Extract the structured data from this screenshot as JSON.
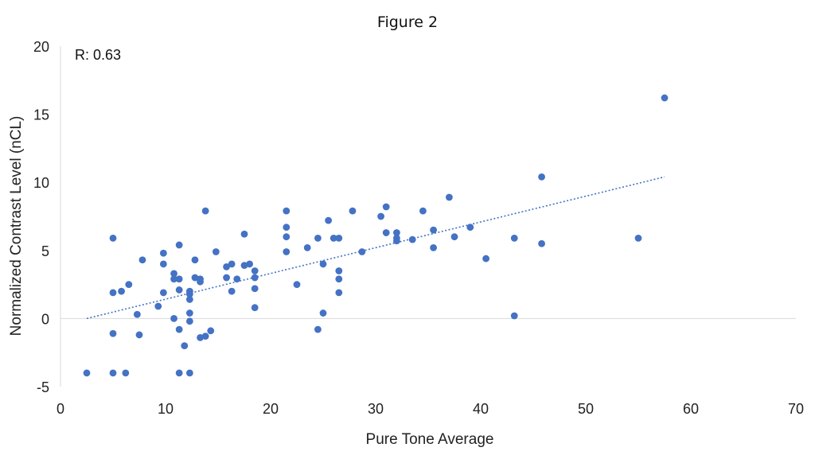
{
  "chart_data": {
    "type": "scatter",
    "title": "Figure 2",
    "xlabel": "Pure Tone Average",
    "ylabel": "Normalized Contrast Level (nCL)",
    "annotation": "R: 0.63",
    "xlim": [
      0,
      70
    ],
    "ylim": [
      -5,
      20
    ],
    "xticks": [
      0,
      10,
      20,
      30,
      40,
      50,
      60,
      70
    ],
    "yticks": [
      -5,
      0,
      5,
      10,
      15,
      20
    ],
    "grid": "horizontal",
    "marker_color": "#4472C4",
    "trendline": {
      "type": "linear",
      "style": "dotted",
      "x": [
        2.5,
        57.5
      ],
      "y": [
        0.0,
        10.4
      ]
    },
    "series": [
      {
        "x": [
          2.5,
          5,
          5,
          5,
          5,
          5.8,
          6.2,
          6.5,
          7.3,
          7.5,
          7.8,
          9.3,
          9.8,
          9.8,
          9.8,
          10.8,
          10.8,
          10.8,
          11.3,
          11.3,
          11.3,
          11.3,
          11.3,
          11.8,
          12.3,
          12.3,
          12.3,
          12.3,
          12.3,
          12.3,
          12.8,
          12.8,
          13.3,
          13.3,
          13.3,
          13.8,
          13.8,
          14.3,
          14.8,
          15.8,
          15.8,
          16.3,
          16.3,
          16.8,
          17.5,
          17.5,
          18,
          18.5,
          18.5,
          18.5,
          18.5,
          21.5,
          21.5,
          21.5,
          21.5,
          22.5,
          23.5,
          24.5,
          24.5,
          25,
          25,
          25.5,
          26,
          26.5,
          26.5,
          26.5,
          26.5,
          27.8,
          28.7,
          30.5,
          31,
          31,
          32,
          32,
          32,
          33.5,
          34.5,
          35.5,
          35.5,
          37,
          37.5,
          39,
          40.5,
          43.2,
          43.2,
          45.8,
          45.8,
          55,
          57.5
        ],
        "y": [
          -4,
          5.9,
          1.9,
          -1.1,
          -4,
          2,
          -4,
          2.5,
          0.3,
          -1.2,
          4.3,
          0.9,
          4.8,
          4,
          1.9,
          3.3,
          2.9,
          0,
          5.4,
          2.9,
          2.1,
          -0.8,
          -4,
          -2,
          2,
          1.8,
          1.4,
          0.4,
          -0.2,
          -4,
          4.3,
          3,
          2.9,
          2.7,
          -1.4,
          7.9,
          -1.3,
          -0.9,
          4.9,
          3.8,
          3,
          4,
          2,
          2.9,
          6.2,
          3.9,
          4,
          3.5,
          3,
          2.2,
          0.8,
          7.9,
          6.7,
          6,
          4.9,
          2.5,
          5.2,
          5.9,
          -0.8,
          4,
          0.4,
          7.2,
          5.9,
          5.9,
          3.5,
          2.9,
          1.9,
          7.9,
          4.9,
          7.5,
          8.2,
          6.3,
          6.3,
          5.9,
          5.7,
          5.8,
          7.9,
          6.5,
          5.2,
          8.9,
          6,
          6.7,
          4.4,
          5.9,
          0.2,
          10.4,
          5.5,
          5.9,
          16.2
        ]
      }
    ]
  }
}
